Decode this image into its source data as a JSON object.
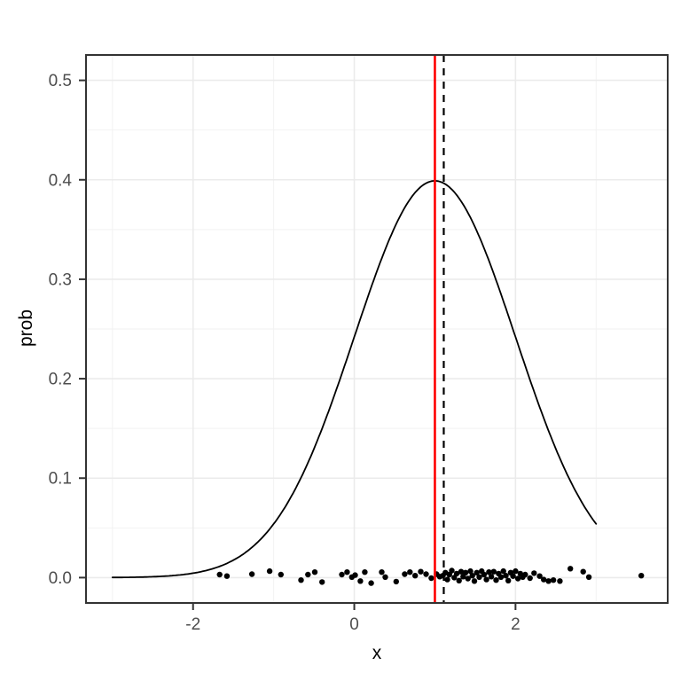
{
  "figure": {
    "colors": {
      "background": "#ffffff",
      "panel_background": "#ffffff",
      "border": "#333333",
      "grid_major": "#ebebeb",
      "grid_minor": "#f2f2f2",
      "tick": "#333333",
      "tick_label": "#4d4d4d",
      "axis_title": "#000000",
      "curve": "#000000",
      "point": "#000000"
    }
  },
  "chart_data": {
    "type": "line+scatter",
    "title": "",
    "xlabel": "x",
    "ylabel": "prob",
    "x_domain": [
      -3.328,
      3.888
    ],
    "y_domain": [
      -0.0255,
      0.5255
    ],
    "x_ticks": [
      -2,
      0,
      2
    ],
    "x_tick_labels": [
      "-2",
      "0",
      "2"
    ],
    "y_ticks": [
      0.0,
      0.1,
      0.2,
      0.3,
      0.4,
      0.5
    ],
    "y_tick_labels": [
      "0.0",
      "0.1",
      "0.2",
      "0.3",
      "0.4",
      "0.5"
    ],
    "x_minor_breaks": [
      -3,
      -1,
      1,
      3
    ],
    "y_minor_breaks": [
      0.05,
      0.15,
      0.25,
      0.35,
      0.45
    ],
    "grid": true,
    "legend": "none",
    "curve": {
      "label": "normal-density-curve",
      "distribution": "normal",
      "mean": 1,
      "sd": 1,
      "peak_value": 0.3989,
      "x_min": -3,
      "x_max": 3,
      "color": "#000000",
      "width": 1.8
    },
    "vlines": [
      {
        "name": "red-mean-vline",
        "x": 1.0,
        "color": "#ff0000",
        "style": "solid",
        "width": 2.6
      },
      {
        "name": "dashed-mean-vline",
        "x": 1.11,
        "color": "#000000",
        "style": "dashed",
        "width": 2.2
      }
    ],
    "points": {
      "color": "#000000",
      "radius": 3.2,
      "jitter_band_center": 0.005,
      "data": [
        [
          -1.67,
          0.003
        ],
        [
          -1.58,
          0.0015
        ],
        [
          -1.27,
          0.0035
        ],
        [
          -1.05,
          0.0065
        ],
        [
          -0.91,
          0.003
        ],
        [
          -0.66,
          -0.0025
        ],
        [
          -0.575,
          0.003
        ],
        [
          -0.49,
          0.0055
        ],
        [
          -0.4,
          -0.0045
        ],
        [
          -0.155,
          0.003
        ],
        [
          -0.09,
          0.0055
        ],
        [
          -0.03,
          0.0005
        ],
        [
          0.01,
          0.0025
        ],
        [
          0.075,
          -0.0035
        ],
        [
          0.13,
          0.0055
        ],
        [
          0.21,
          -0.0055
        ],
        [
          0.34,
          0.0055
        ],
        [
          0.385,
          0.0005
        ],
        [
          0.52,
          -0.004
        ],
        [
          0.625,
          0.0035
        ],
        [
          0.69,
          0.0055
        ],
        [
          0.755,
          0.002
        ],
        [
          0.825,
          0.006
        ],
        [
          0.89,
          0.0035
        ],
        [
          0.955,
          -0.0005
        ],
        [
          1.02,
          0.0035
        ],
        [
          1.06,
          0.001
        ],
        [
          1.1,
          0.002
        ],
        [
          1.13,
          0.005
        ],
        [
          1.155,
          -0.002
        ],
        [
          1.18,
          0.003
        ],
        [
          1.21,
          0.007
        ],
        [
          1.24,
          0.0
        ],
        [
          1.27,
          0.004
        ],
        [
          1.3,
          -0.003
        ],
        [
          1.325,
          0.006
        ],
        [
          1.35,
          0.001
        ],
        [
          1.38,
          0.005
        ],
        [
          1.41,
          -0.001
        ],
        [
          1.44,
          0.0065
        ],
        [
          1.465,
          0.002
        ],
        [
          1.49,
          -0.0035
        ],
        [
          1.52,
          0.005
        ],
        [
          1.55,
          0.0005
        ],
        [
          1.58,
          0.0065
        ],
        [
          1.61,
          0.003
        ],
        [
          1.64,
          -0.002
        ],
        [
          1.67,
          0.0055
        ],
        [
          1.7,
          0.001
        ],
        [
          1.73,
          0.006
        ],
        [
          1.76,
          -0.0025
        ],
        [
          1.79,
          0.004
        ],
        [
          1.82,
          0.0005
        ],
        [
          1.85,
          0.0065
        ],
        [
          1.88,
          0.002
        ],
        [
          1.91,
          -0.003
        ],
        [
          1.94,
          0.005
        ],
        [
          1.97,
          0.0015
        ],
        [
          2.0,
          0.0065
        ],
        [
          2.03,
          -0.001
        ],
        [
          2.06,
          0.004
        ],
        [
          2.09,
          0.0005
        ],
        [
          2.12,
          0.003
        ],
        [
          2.18,
          -0.0005
        ],
        [
          2.23,
          0.0045
        ],
        [
          2.3,
          0.0015
        ],
        [
          2.35,
          -0.002
        ],
        [
          2.41,
          -0.0035
        ],
        [
          2.47,
          -0.0025
        ],
        [
          2.55,
          -0.0035
        ],
        [
          2.68,
          0.009
        ],
        [
          2.84,
          0.006
        ],
        [
          2.91,
          0.0005
        ],
        [
          3.56,
          0.002
        ]
      ]
    }
  }
}
